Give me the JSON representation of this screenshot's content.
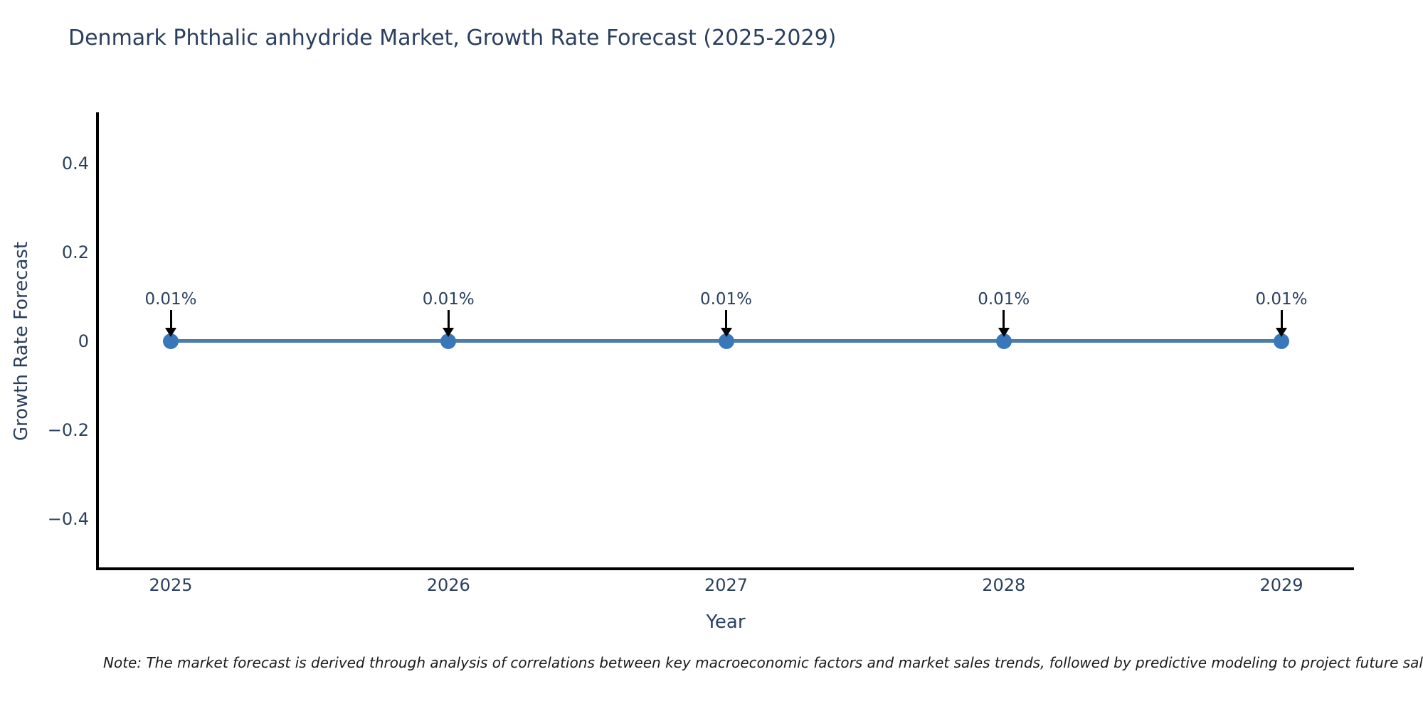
{
  "header": {
    "title": "Denmark Phthalic anhydride Market, Growth Rate Forecast (2025-2029)"
  },
  "chart_data": {
    "type": "line",
    "title": "Denmark Phthalic anhydride Market, Growth Rate Forecast (2025-2029)",
    "categories": [
      "2025",
      "2026",
      "2027",
      "2028",
      "2029"
    ],
    "values_percent": [
      0.01,
      0.01,
      0.01,
      0.01,
      0.01
    ],
    "point_labels": [
      "0.01%",
      "0.01%",
      "0.01%",
      "0.01%",
      "0.01%"
    ],
    "xlabel": "Year",
    "ylabel": "Growth Rate Forecast",
    "y_ticks": [
      {
        "value": 0.4,
        "label": "0.4"
      },
      {
        "value": 0.2,
        "label": "0.2"
      },
      {
        "value": 0,
        "label": "0"
      },
      {
        "value": -0.2,
        "label": "−0.2"
      },
      {
        "value": -0.4,
        "label": "−0.4"
      }
    ],
    "ylim": [
      -0.5,
      0.5
    ],
    "grid": false,
    "legend_position": "none",
    "colors": {
      "line": "#4d7ca6",
      "marker": "#3878ba",
      "annotation_arrow": "#000000",
      "axis_line": "#000000",
      "text": "#2a3f5f"
    }
  },
  "note": {
    "text": "Note: The market forecast is derived through analysis of correlations between key macroeconomic factors and market sales trends, followed by predictive modeling to project future sales."
  }
}
